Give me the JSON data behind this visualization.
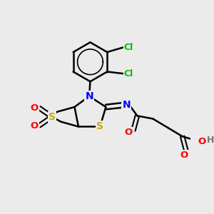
{
  "background_color": "#ebebeb",
  "atom_colors": {
    "C": "#000000",
    "N": "#0000ff",
    "S": "#ccaa00",
    "O": "#ff0000",
    "Cl": "#00bb00",
    "H": "#777777"
  },
  "figsize": [
    3.0,
    3.0
  ],
  "dpi": 100
}
